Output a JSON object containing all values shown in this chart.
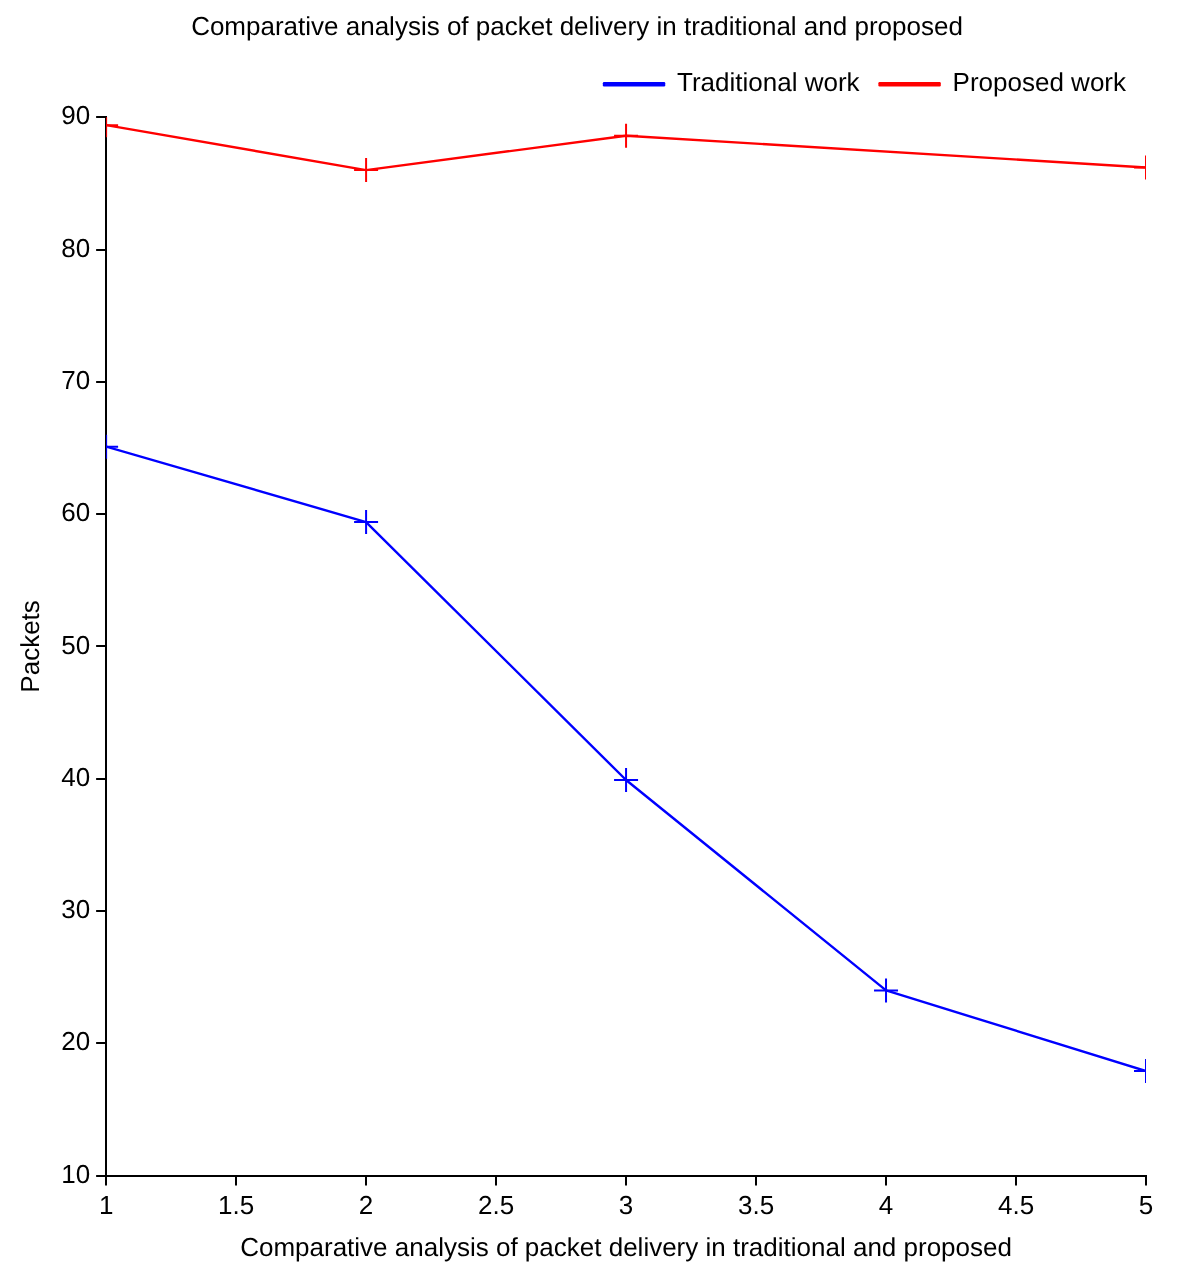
{
  "chart_data": {
    "type": "line",
    "title": "Comparative analysis of packet delivery in traditional and proposed",
    "xlabel": "Comparative analysis of packet delivery in traditional and proposed",
    "ylabel": "Packets",
    "x": [
      1,
      2,
      3,
      4,
      5
    ],
    "series": [
      {
        "name": "Traditional work",
        "color": "#0000ff",
        "values": [
          65.1,
          59.4,
          39.9,
          24,
          17.9
        ]
      },
      {
        "name": "Proposed work",
        "color": "#ff0000",
        "values": [
          89.4,
          86,
          88.6,
          null,
          86.2
        ]
      }
    ],
    "xlim": [
      1,
      5
    ],
    "xticks": [
      1,
      1.5,
      2,
      2.5,
      3,
      3.5,
      4,
      4.5,
      5
    ],
    "ylim": [
      10,
      90
    ],
    "yticks": [
      10,
      20,
      30,
      40,
      50,
      60,
      70,
      80,
      90
    ],
    "grid": false,
    "legend": "top right",
    "marker": "cross",
    "line_style": "solid"
  }
}
